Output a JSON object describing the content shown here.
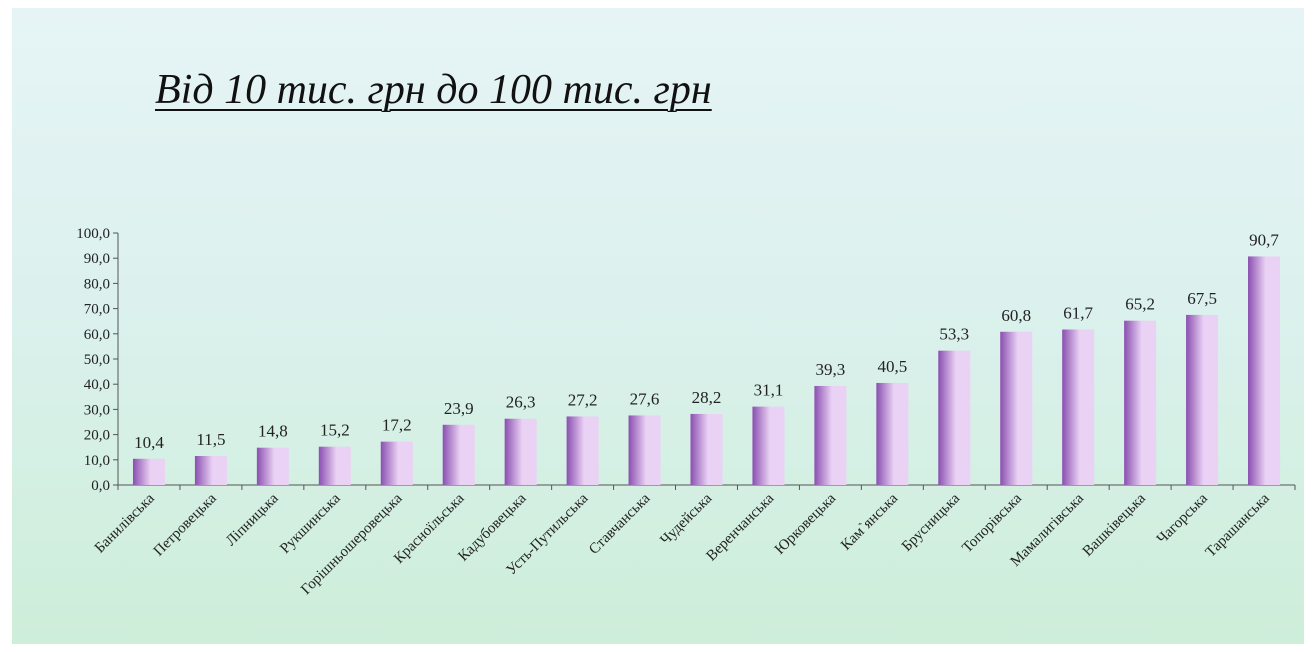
{
  "slide": {
    "title": "Від 10 тис. грн до 100 тис. грн"
  },
  "chart_data": {
    "type": "bar",
    "title": "",
    "xlabel": "",
    "ylabel": "",
    "ylim": [
      0,
      100
    ],
    "ytick_step": 10,
    "ytick_labels": [
      "0,0",
      "10,0",
      "20,0",
      "30,0",
      "40,0",
      "50,0",
      "60,0",
      "70,0",
      "80,0",
      "90,0",
      "100,0"
    ],
    "grid": false,
    "legend": "none",
    "categories": [
      "Банилівська",
      "Петровецька",
      "Ліпницька",
      "Рукшинська",
      "Горішньошеровецька",
      "Красноїльська",
      "Кадубовецька",
      "Усть-Путильська",
      "Ставчанська",
      "Чудейська",
      "Веренчанська",
      "Юрковецька",
      "Кам`янська",
      "Брусницька",
      "Топорівська",
      "Мамалигівська",
      "Вашківецька",
      "Чагорська",
      "Тарашанська"
    ],
    "values": [
      10.4,
      11.5,
      14.8,
      15.2,
      17.2,
      23.9,
      26.3,
      27.2,
      27.6,
      28.2,
      31.1,
      39.3,
      40.5,
      53.3,
      60.8,
      61.7,
      65.2,
      67.5,
      90.7
    ],
    "value_labels": [
      "10,4",
      "11,5",
      "14,8",
      "15,2",
      "17,2",
      "23,9",
      "26,3",
      "27,2",
      "27,6",
      "28,2",
      "31,1",
      "39,3",
      "40,5",
      "53,3",
      "60,8",
      "61,7",
      "65,2",
      "67,5",
      "90,7"
    ],
    "colors": {
      "bar_dark": "#8a4fb0",
      "bar_light": "#ead2f4",
      "axis": "#555555"
    }
  }
}
